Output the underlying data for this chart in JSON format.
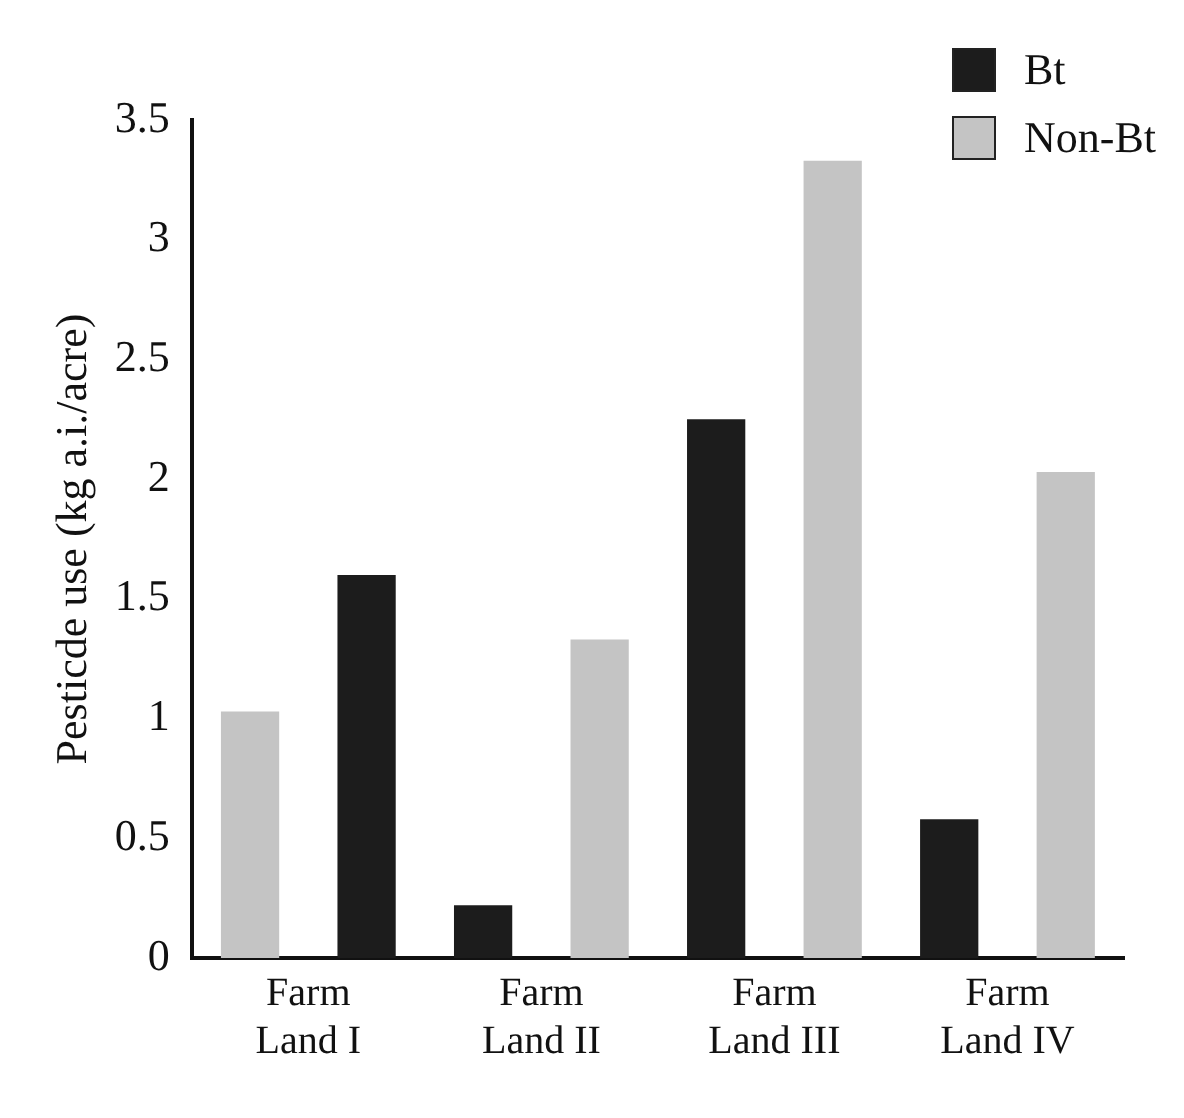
{
  "chart_data": {
    "type": "bar",
    "ylabel": "Pesticde use (kg a.i./acre)",
    "categories": [
      "Farm Land I",
      "Farm Land II",
      "Farm Land III",
      "Farm Land IV"
    ],
    "series": [
      {
        "color": "#c4c4c4",
        "values": [
          1.03,
          null,
          null,
          null
        ]
      },
      {
        "name": "Bt",
        "color": "#1c1c1c",
        "values": [
          1.6,
          0.22,
          2.25,
          0.58
        ]
      },
      {
        "name": "Non-Bt",
        "color": "#c4c4c4",
        "values": [
          null,
          1.33,
          3.33,
          2.03
        ]
      }
    ],
    "ylim": [
      0,
      3.5
    ],
    "yticks": [
      0,
      0.5,
      1,
      1.5,
      2,
      2.5,
      3,
      3.5
    ],
    "grid": false,
    "legend": "top right"
  }
}
